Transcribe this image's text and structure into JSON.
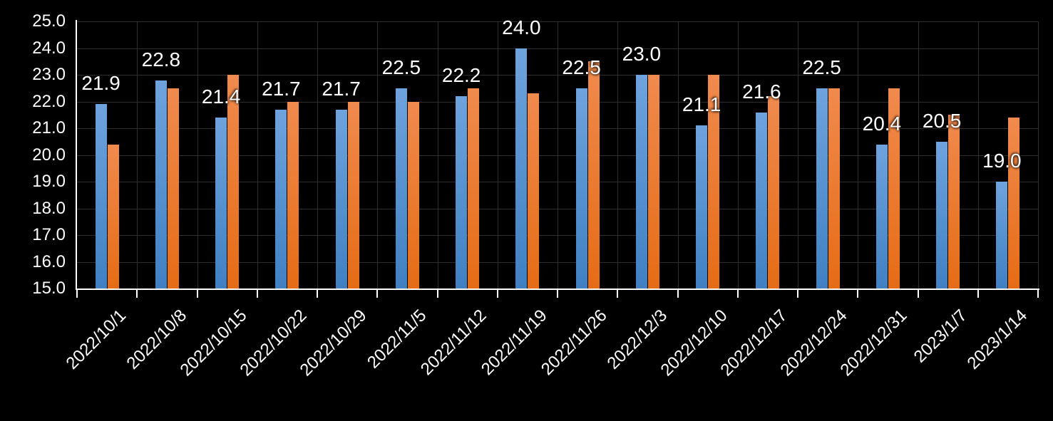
{
  "chart_data": {
    "type": "bar",
    "title": "",
    "legend_position": "none",
    "grid": true,
    "background_color": "#000000",
    "axis_color": "#ffffff",
    "gridline_color": "#2f2f2f",
    "text_color": "#ffffff",
    "ylim": [
      15.0,
      25.0
    ],
    "ytick_step": 1.0,
    "ytick_labels": [
      "25.0",
      "24.0",
      "23.0",
      "22.0",
      "21.0",
      "20.0",
      "19.0",
      "18.0",
      "17.0",
      "16.0",
      "15.0"
    ],
    "categories": [
      "2022/10/1",
      "2022/10/8",
      "2022/10/15",
      "2022/10/22",
      "2022/10/29",
      "2022/11/5",
      "2022/11/12",
      "2022/11/19",
      "2022/11/26",
      "2022/12/3",
      "2022/12/10",
      "2022/12/17",
      "2022/12/24",
      "2022/12/31",
      "2023/1/7",
      "2023/1/14"
    ],
    "series": [
      {
        "name": "blue",
        "color_top": "#6ea3dd",
        "color_bottom": "#4080c2",
        "values": [
          21.9,
          22.8,
          21.4,
          21.7,
          21.7,
          22.5,
          22.2,
          24.0,
          22.5,
          23.0,
          21.1,
          21.6,
          22.5,
          20.4,
          20.5,
          19.0
        ],
        "data_labels": [
          "21.9",
          "22.8",
          "21.4",
          "21.7",
          "21.7",
          "22.5",
          "22.2",
          "24.0",
          "22.5",
          "23.0",
          "21.1",
          "21.6",
          "22.5",
          "20.4",
          "20.5",
          "19.0"
        ]
      },
      {
        "name": "orange",
        "color_top": "#f08a4e",
        "color_bottom": "#e56c15",
        "values": [
          20.4,
          22.5,
          23.0,
          22.0,
          22.0,
          22.0,
          22.5,
          22.3,
          23.5,
          23.0,
          23.0,
          22.2,
          22.5,
          22.5,
          21.5,
          21.4
        ],
        "data_labels": []
      }
    ]
  }
}
